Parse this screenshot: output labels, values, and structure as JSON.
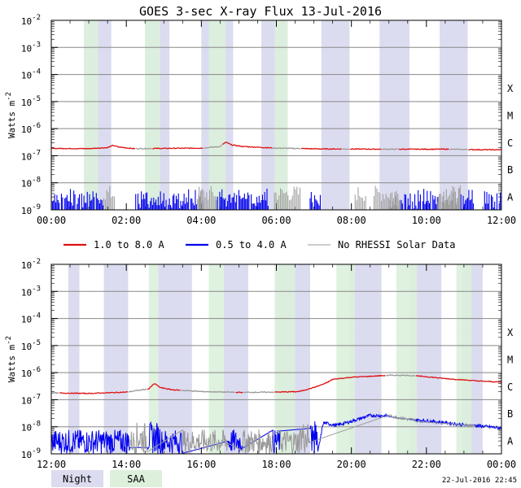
{
  "title": "GOES 3-sec X-ray Flux   13-Jul-2016",
  "footer_timestamp": "22-Jul-2016 22:45",
  "legend": [
    {
      "label": "1.0 to 8.0 A",
      "color": "#dd1111"
    },
    {
      "label": "0.5 to 4.0 A",
      "color": "#0000ee"
    },
    {
      "label": "No RHESSI Solar Data",
      "color": "#999999"
    }
  ],
  "shading_legend": [
    {
      "label": "Night",
      "color": "#dcdcf0"
    },
    {
      "label": "SAA",
      "color": "#dcf0dc"
    }
  ],
  "colors": {
    "night": "#dcdcf0",
    "saa": "#dcf0dc",
    "grid": "#888888",
    "long": "#dd1111",
    "short": "#0000ee",
    "gray": "#999999"
  },
  "chart_data": [
    {
      "type": "line",
      "panel": "top",
      "ylabel_main": "Watts m",
      "ylabel_sup": "-2",
      "y_scale": "log",
      "ylim_exp": [
        -9,
        -2
      ],
      "y_ticks": [
        {
          "base": "10",
          "exp": "-2"
        },
        {
          "base": "10",
          "exp": "-3"
        },
        {
          "base": "10",
          "exp": "-4"
        },
        {
          "base": "10",
          "exp": "-5"
        },
        {
          "base": "10",
          "exp": "-6"
        },
        {
          "base": "10",
          "exp": "-7"
        },
        {
          "base": "10",
          "exp": "-8"
        },
        {
          "base": "10",
          "exp": "-9"
        }
      ],
      "flare_classes": [
        {
          "label": "X",
          "exp": -4
        },
        {
          "label": "M",
          "exp": -5
        },
        {
          "label": "C",
          "exp": -6
        },
        {
          "label": "B",
          "exp": -7
        },
        {
          "label": "A",
          "exp": -8
        }
      ],
      "xlim_hours": [
        0,
        12
      ],
      "x_ticks": [
        "00:00",
        "02:00",
        "04:00",
        "06:00",
        "08:00",
        "10:00",
        "12:00"
      ],
      "night_intervals": [
        [
          0.87,
          1.6
        ],
        [
          2.5,
          3.15
        ],
        [
          4.0,
          4.85
        ],
        [
          5.6,
          6.3
        ],
        [
          7.2,
          7.95
        ],
        [
          8.75,
          9.55
        ],
        [
          10.35,
          11.1
        ]
      ],
      "saa_intervals": [
        [
          0.87,
          1.25
        ],
        [
          2.5,
          2.9
        ],
        [
          4.2,
          4.65
        ],
        [
          5.95,
          6.3
        ]
      ],
      "series": [
        {
          "name": "1.0 to 8.0 A",
          "color": "#dd1111",
          "points": [
            [
              0,
              -6.73
            ],
            [
              1,
              -6.74
            ],
            [
              1.5,
              -6.7
            ],
            [
              1.65,
              -6.62
            ],
            [
              1.8,
              -6.68
            ],
            [
              2.2,
              -6.74
            ],
            [
              3,
              -6.73
            ],
            [
              4,
              -6.72
            ],
            [
              4.5,
              -6.66
            ],
            [
              4.65,
              -6.5
            ],
            [
              4.8,
              -6.6
            ],
            [
              5.1,
              -6.66
            ],
            [
              6,
              -6.72
            ],
            [
              7.2,
              -6.75
            ],
            [
              9,
              -6.76
            ],
            [
              10.5,
              -6.76
            ],
            [
              11.5,
              -6.78
            ],
            [
              12,
              -6.78
            ]
          ],
          "gray_segments": [
            [
              2.25,
              2.7
            ],
            [
              4.05,
              4.55
            ],
            [
              5.9,
              6.65
            ],
            [
              7.75,
              7.95
            ],
            [
              8.8,
              9.25
            ],
            [
              10.6,
              11.1
            ]
          ]
        },
        {
          "name": "0.5 to 4.0 A",
          "color": "#0000ee",
          "segments": [
            [
              0.0,
              1.4
            ],
            [
              2.25,
              4.1
            ],
            [
              4.4,
              5.8
            ],
            [
              6.9,
              7.2
            ],
            [
              9.0,
              11.3
            ],
            [
              11.55,
              12.0
            ]
          ],
          "peak_exp": [
            -8.2,
            -8.4,
            -8.6,
            -8.3,
            -8.5,
            -8.2,
            -8.6,
            -8.3,
            -8.7,
            -8.2,
            -8.4,
            -8.6,
            -8.25,
            -8.5,
            -8.2,
            -8.55,
            -8.35,
            -8.15,
            -8.45,
            -8.6
          ],
          "gray_segments": [
            [
              1.4,
              1.7
            ],
            [
              3.9,
              4.4
            ],
            [
              5.95,
              6.65
            ],
            [
              8.1,
              8.4
            ],
            [
              8.6,
              9.3
            ],
            [
              10.3,
              10.9
            ]
          ]
        },
        {
          "name": "No RHESSI Solar Data",
          "color": "#999999"
        }
      ]
    },
    {
      "type": "line",
      "panel": "bottom",
      "ylabel_main": "Watts m",
      "ylabel_sup": "-2",
      "y_scale": "log",
      "ylim_exp": [
        -9,
        -2
      ],
      "y_ticks": [
        {
          "base": "10",
          "exp": "-2"
        },
        {
          "base": "10",
          "exp": "-3"
        },
        {
          "base": "10",
          "exp": "-4"
        },
        {
          "base": "10",
          "exp": "-5"
        },
        {
          "base": "10",
          "exp": "-6"
        },
        {
          "base": "10",
          "exp": "-7"
        },
        {
          "base": "10",
          "exp": "-8"
        },
        {
          "base": "10",
          "exp": "-9"
        }
      ],
      "flare_classes": [
        {
          "label": "X",
          "exp": -4
        },
        {
          "label": "M",
          "exp": -5
        },
        {
          "label": "C",
          "exp": -6
        },
        {
          "label": "B",
          "exp": -7
        },
        {
          "label": "A",
          "exp": -8
        }
      ],
      "xlim_hours": [
        12,
        24
      ],
      "x_ticks": [
        "12:00",
        "14:00",
        "16:00",
        "18:00",
        "20:00",
        "22:00",
        "00:00"
      ],
      "night_intervals": [
        [
          12.45,
          12.75
        ],
        [
          13.4,
          14.05
        ],
        [
          14.85,
          15.75
        ],
        [
          16.6,
          17.25
        ],
        [
          18.0,
          18.9
        ],
        [
          19.95,
          20.8
        ],
        [
          21.55,
          22.4
        ],
        [
          22.95,
          23.5
        ]
      ],
      "saa_intervals": [
        [
          14.6,
          14.85
        ],
        [
          16.2,
          16.6
        ],
        [
          17.95,
          18.5
        ],
        [
          19.6,
          20.1
        ],
        [
          21.2,
          21.75
        ],
        [
          22.8,
          23.2
        ]
      ],
      "series": [
        {
          "name": "1.0 to 8.0 A",
          "color": "#dd1111",
          "points": [
            [
              12,
              -6.75
            ],
            [
              13,
              -6.77
            ],
            [
              14,
              -6.72
            ],
            [
              14.6,
              -6.6
            ],
            [
              14.75,
              -6.4
            ],
            [
              14.9,
              -6.55
            ],
            [
              15.2,
              -6.63
            ],
            [
              16,
              -6.7
            ],
            [
              17,
              -6.73
            ],
            [
              18,
              -6.72
            ],
            [
              18.6,
              -6.7
            ],
            [
              19,
              -6.55
            ],
            [
              19.3,
              -6.4
            ],
            [
              19.5,
              -6.25
            ],
            [
              20,
              -6.17
            ],
            [
              21,
              -6.1
            ],
            [
              21.5,
              -6.1
            ],
            [
              22,
              -6.15
            ],
            [
              22.5,
              -6.22
            ],
            [
              23,
              -6.27
            ],
            [
              23.5,
              -6.32
            ],
            [
              24,
              -6.35
            ]
          ],
          "gray_segments": [
            [
              12.0,
              12.2
            ],
            [
              14.05,
              14.55
            ],
            [
              15.45,
              16.9
            ],
            [
              17.1,
              17.95
            ],
            [
              20.9,
              21.7
            ]
          ]
        },
        {
          "name": "0.5 to 4.0 A",
          "color": "#0000ee",
          "points": [
            [
              12,
              -9
            ],
            [
              19.1,
              -9
            ],
            [
              19.25,
              -7.85
            ],
            [
              19.6,
              -7.95
            ],
            [
              20,
              -7.8
            ],
            [
              20.5,
              -7.58
            ],
            [
              21,
              -7.6
            ],
            [
              21.5,
              -7.72
            ],
            [
              22,
              -7.78
            ],
            [
              22.5,
              -7.85
            ],
            [
              23,
              -7.93
            ],
            [
              23.5,
              -7.98
            ],
            [
              24,
              -8.05
            ]
          ],
          "noise_range": [
            12.0,
            19.1
          ],
          "gray_segments": [
            [
              14.1,
              14.55
            ],
            [
              15.5,
              16.7
            ],
            [
              17.1,
              17.9
            ],
            [
              18.1,
              18.9
            ],
            [
              21.0,
              21.7
            ],
            [
              23.0,
              23.3
            ]
          ]
        },
        {
          "name": "No RHESSI Solar Data",
          "color": "#999999"
        }
      ]
    }
  ]
}
